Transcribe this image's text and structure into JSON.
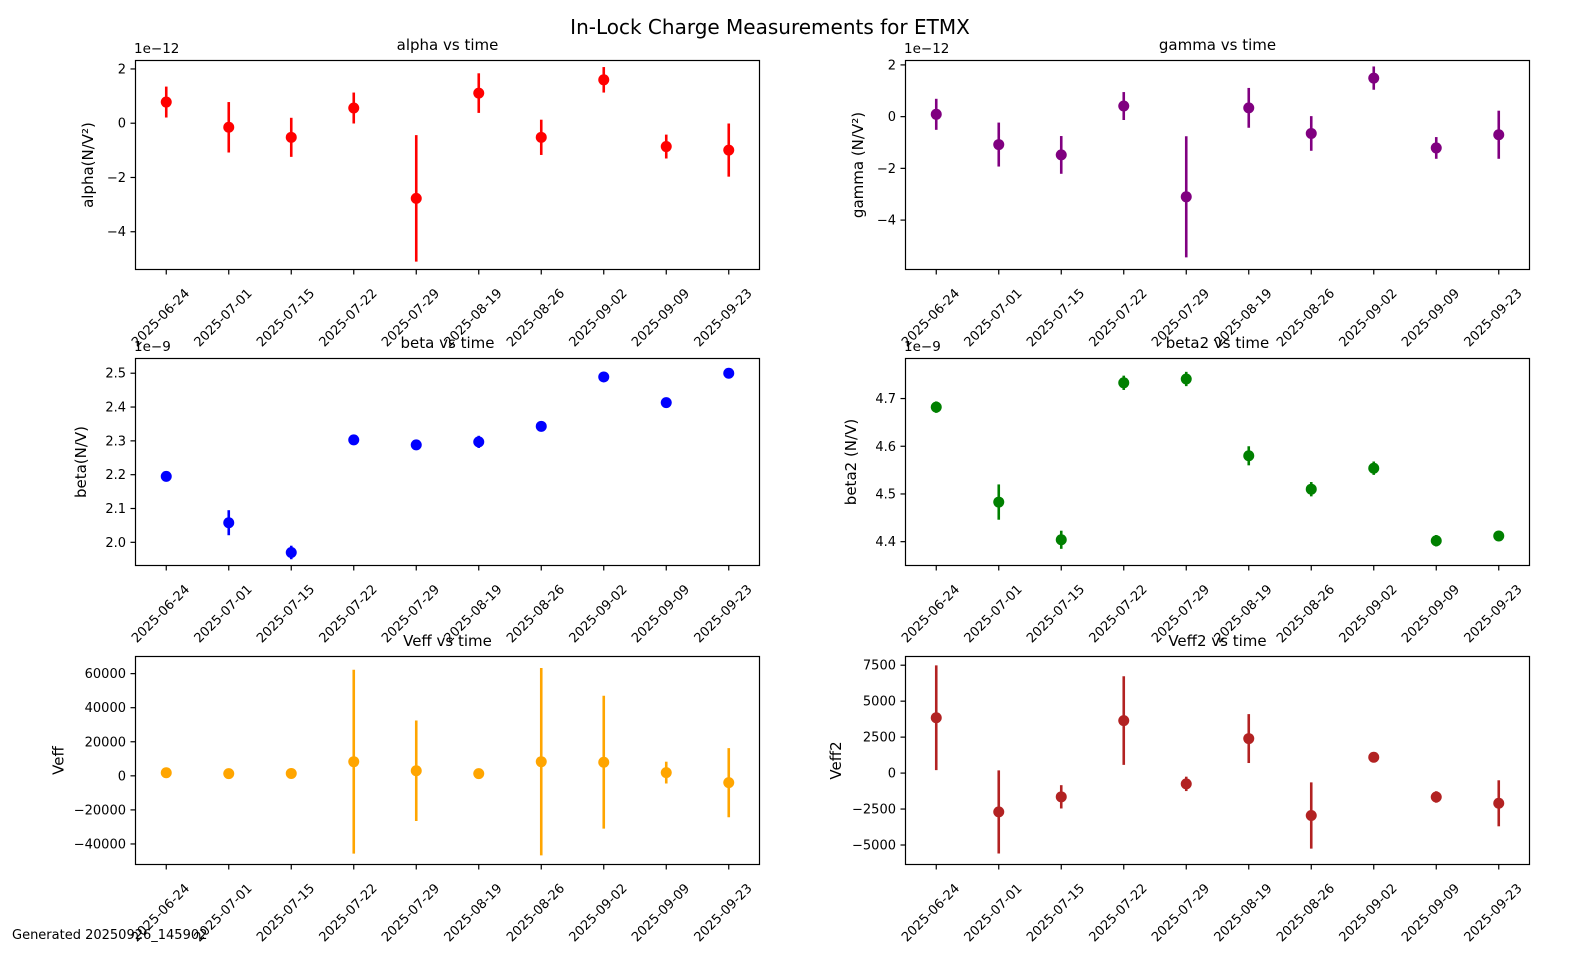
{
  "page": {
    "title": "In-Lock Charge Measurements for ETMX",
    "footer": "Generated 20250926_145902",
    "background": "#ffffff",
    "text_color": "#000000"
  },
  "x_labels": [
    "2025-06-24",
    "2025-07-01",
    "2025-07-15",
    "2025-07-22",
    "2025-07-29",
    "2025-08-19",
    "2025-08-26",
    "2025-09-02",
    "2025-09-09",
    "2025-09-23"
  ],
  "chart_data": [
    {
      "id": "alpha",
      "type": "scatter",
      "title": "alpha vs time",
      "ylabel": "alpha(N/V²)",
      "offset_label": "1e−12",
      "color": "#ff0000",
      "grid": false,
      "legend": null,
      "categories": [
        "2025-06-24",
        "2025-07-01",
        "2025-07-15",
        "2025-07-22",
        "2025-07-29",
        "2025-08-19",
        "2025-08-26",
        "2025-09-02",
        "2025-09-09",
        "2025-09-23"
      ],
      "values": [
        0.78,
        -0.15,
        -0.52,
        0.56,
        -2.77,
        1.11,
        -0.52,
        1.6,
        -0.86,
        -0.99
      ],
      "errors": [
        0.57,
        0.93,
        0.72,
        0.57,
        2.33,
        0.73,
        0.65,
        0.47,
        0.44,
        0.98
      ],
      "ylim": [
        -5.41,
        2.33
      ],
      "ytick_values": [
        2,
        0,
        -2,
        -4
      ],
      "ytick_labels": [
        "2",
        "0",
        "−2",
        "−4"
      ]
    },
    {
      "id": "gamma",
      "type": "scatter",
      "title": "gamma vs time",
      "ylabel": "gamma (N/V²)",
      "offset_label": "1e−12",
      "color": "#800080",
      "grid": false,
      "legend": null,
      "categories": [
        "2025-06-24",
        "2025-07-01",
        "2025-07-15",
        "2025-07-22",
        "2025-07-29",
        "2025-08-19",
        "2025-08-26",
        "2025-09-02",
        "2025-09-09",
        "2025-09-23"
      ],
      "values": [
        0.09,
        -1.08,
        -1.48,
        0.41,
        -3.1,
        0.34,
        -0.65,
        1.49,
        -1.21,
        -0.7
      ],
      "errors": [
        0.6,
        0.85,
        0.73,
        0.54,
        2.34,
        0.77,
        0.67,
        0.45,
        0.42,
        0.93
      ],
      "ylim": [
        -5.93,
        2.19
      ],
      "ytick_values": [
        2,
        0,
        -2,
        -4
      ],
      "ytick_labels": [
        "2",
        "0",
        "−2",
        "−4"
      ]
    },
    {
      "id": "beta",
      "type": "scatter",
      "title": "beta vs time",
      "ylabel": "beta(N/V)",
      "offset_label": "1e−9",
      "color": "#0000ff",
      "grid": false,
      "legend": null,
      "categories": [
        "2025-06-24",
        "2025-07-01",
        "2025-07-15",
        "2025-07-22",
        "2025-07-29",
        "2025-08-19",
        "2025-08-26",
        "2025-09-02",
        "2025-09-09",
        "2025-09-23"
      ],
      "values": [
        2.195,
        2.058,
        1.97,
        2.303,
        2.288,
        2.297,
        2.343,
        2.489,
        2.413,
        2.5
      ],
      "errors": [
        0.015,
        0.037,
        0.02,
        0.015,
        0.012,
        0.018,
        0.012,
        0.013,
        0.008,
        0.008
      ],
      "ylim": [
        1.93,
        2.545
      ],
      "ytick_values": [
        2.5,
        2.4,
        2.3,
        2.2,
        2.1,
        2.0
      ],
      "ytick_labels": [
        "2.5",
        "2.4",
        "2.3",
        "2.2",
        "2.1",
        "2.0"
      ]
    },
    {
      "id": "beta2",
      "type": "scatter",
      "title": "beta2 vs time",
      "ylabel": "beta2 (N/V)",
      "offset_label": "1e−9",
      "color": "#008000",
      "grid": false,
      "legend": null,
      "categories": [
        "2025-06-24",
        "2025-07-01",
        "2025-07-15",
        "2025-07-22",
        "2025-07-29",
        "2025-08-19",
        "2025-08-26",
        "2025-09-02",
        "2025-09-09",
        "2025-09-23"
      ],
      "values": [
        4.682,
        4.483,
        4.404,
        4.733,
        4.741,
        4.58,
        4.51,
        4.554,
        4.402,
        4.412
      ],
      "errors": [
        0.012,
        0.037,
        0.019,
        0.015,
        0.015,
        0.02,
        0.015,
        0.014,
        0.012,
        0.01
      ],
      "ylim": [
        4.349,
        4.785
      ],
      "ytick_values": [
        4.7,
        4.6,
        4.5,
        4.4
      ],
      "ytick_labels": [
        "4.7",
        "4.6",
        "4.5",
        "4.4"
      ]
    },
    {
      "id": "veff",
      "type": "scatter",
      "title": "Veff vs time",
      "ylabel": "Veff",
      "offset_label": null,
      "color": "#ffa500",
      "grid": false,
      "legend": null,
      "categories": [
        "2025-06-24",
        "2025-07-01",
        "2025-07-15",
        "2025-07-22",
        "2025-07-29",
        "2025-08-19",
        "2025-08-26",
        "2025-09-02",
        "2025-09-09",
        "2025-09-23"
      ],
      "values": [
        1800,
        1300,
        1400,
        8300,
        3000,
        1300,
        8300,
        8000,
        1900,
        -4000
      ],
      "errors": [
        2800,
        2200,
        2300,
        54000,
        29500,
        2200,
        55000,
        39000,
        6400,
        20300
      ],
      "ylim": [
        -52350,
        70350
      ],
      "ytick_values": [
        60000,
        40000,
        20000,
        0,
        -20000,
        -40000
      ],
      "ytick_labels": [
        "60000",
        "40000",
        "20000",
        "0",
        "−20000",
        "−40000"
      ]
    },
    {
      "id": "veff2",
      "type": "scatter",
      "title": "Veff2 vs time",
      "ylabel": "Veff2",
      "offset_label": null,
      "color": "#b22222",
      "grid": false,
      "legend": null,
      "categories": [
        "2025-06-24",
        "2025-07-01",
        "2025-07-15",
        "2025-07-22",
        "2025-07-29",
        "2025-08-19",
        "2025-08-26",
        "2025-09-02",
        "2025-09-09",
        "2025-09-23"
      ],
      "values": [
        3850,
        -2700,
        -1650,
        3650,
        -750,
        2400,
        -2950,
        1100,
        -1660,
        -2100
      ],
      "errors": [
        3640,
        2890,
        810,
        3080,
        500,
        1700,
        2300,
        300,
        400,
        1600
      ],
      "ylim": [
        -6390,
        8140
      ],
      "ytick_values": [
        7500,
        5000,
        2500,
        0,
        -2500,
        -5000
      ],
      "ytick_labels": [
        "7500",
        "5000",
        "2500",
        "0",
        "−2500",
        "−5000"
      ]
    }
  ]
}
